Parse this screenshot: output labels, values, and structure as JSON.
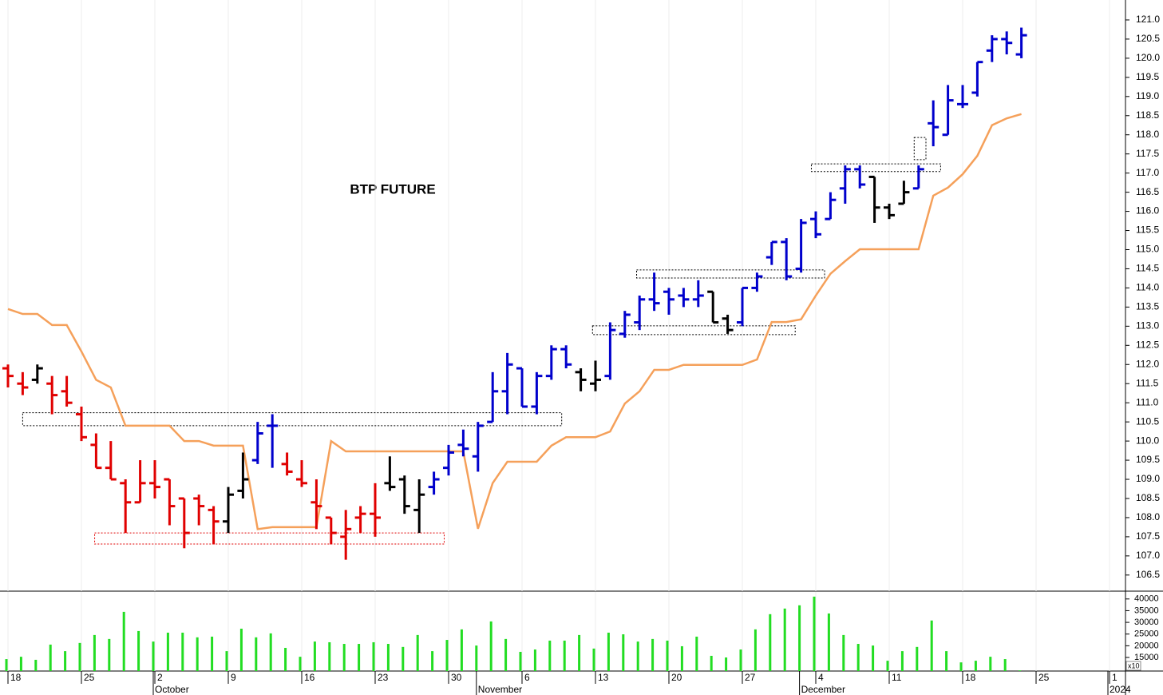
{
  "chart_data": [
    {
      "type": "ohlc",
      "title": "BTP FUTURE",
      "x": [
        "18",
        null,
        null,
        null,
        null,
        "25",
        null,
        null,
        null,
        null,
        "2",
        null,
        null,
        null,
        null,
        "9",
        null,
        null,
        null,
        null,
        "16",
        null,
        null,
        null,
        null,
        "23",
        null,
        null,
        null,
        null,
        "30",
        null,
        null,
        null,
        null,
        "6",
        null,
        null,
        null,
        null,
        "13",
        null,
        null,
        null,
        null,
        "20",
        null,
        null,
        null,
        null,
        "27",
        null,
        null,
        null,
        null,
        "4",
        null,
        null,
        null,
        null,
        "11",
        null,
        null,
        null,
        null,
        "18",
        null,
        null,
        null,
        null,
        "25",
        null,
        null,
        null,
        null,
        "1",
        null
      ],
      "month_labels": [
        null,
        null,
        null,
        null,
        null,
        null,
        null,
        null,
        null,
        null,
        "October",
        null,
        null,
        null,
        null,
        null,
        null,
        null,
        null,
        null,
        null,
        null,
        null,
        null,
        null,
        null,
        null,
        null,
        null,
        null,
        null,
        null,
        "November",
        null,
        null,
        null,
        null,
        null,
        null,
        null,
        null,
        null,
        null,
        null,
        null,
        null,
        null,
        null,
        null,
        null,
        null,
        null,
        null,
        null,
        "December",
        null,
        null,
        null,
        null,
        null,
        null,
        null,
        null,
        null,
        null,
        null,
        null,
        null,
        null,
        null,
        null,
        null,
        null,
        null,
        null,
        "2024",
        null
      ],
      "open": [
        111.9,
        111.5,
        111.6,
        111.5,
        111.3,
        110.7,
        109.9,
        109.3,
        108.9,
        108.4,
        108.9,
        109.0,
        108.5,
        108.5,
        108.2,
        107.9,
        108.7,
        109.5,
        110.4,
        109.4,
        109.0,
        108.4,
        108.0,
        107.5,
        108.0,
        108.1,
        108.9,
        109.0,
        108.2,
        108.8,
        109.3,
        109.9,
        109.6,
        110.5,
        111.3,
        111.9,
        110.9,
        111.7,
        112.4,
        111.8,
        111.5,
        111.7,
        112.8,
        113.1,
        113.7,
        113.9,
        113.8,
        113.7,
        113.9,
        113.2,
        113.1,
        114.0,
        114.8,
        115.2,
        114.5,
        115.8,
        115.8,
        116.6,
        117.1,
        116.9,
        116.1,
        116.2,
        116.6,
        118.3,
        118.0,
        118.8,
        119.1,
        120.2,
        120.5,
        120.1,
        null,
        null,
        null,
        null,
        null,
        null,
        null
      ],
      "high": [
        112.0,
        111.8,
        112.0,
        111.7,
        111.7,
        110.9,
        110.2,
        110.0,
        109.0,
        109.5,
        109.5,
        109.0,
        108.5,
        108.6,
        108.3,
        108.8,
        109.7,
        110.5,
        110.7,
        109.7,
        109.5,
        109.0,
        108.0,
        108.2,
        108.3,
        108.9,
        109.6,
        109.1,
        109.0,
        109.2,
        109.9,
        110.3,
        110.5,
        111.8,
        112.3,
        111.9,
        111.8,
        112.5,
        112.5,
        111.9,
        112.1,
        113.1,
        113.4,
        113.8,
        114.4,
        114.0,
        114.0,
        114.2,
        113.9,
        113.3,
        114.0,
        114.4,
        115.2,
        115.3,
        115.8,
        116.0,
        116.5,
        117.2,
        117.2,
        116.9,
        116.2,
        116.8,
        117.2,
        118.9,
        119.3,
        119.3,
        119.9,
        120.6,
        120.7,
        120.8,
        null,
        null,
        null,
        null,
        null,
        null,
        null
      ],
      "low": [
        111.4,
        111.2,
        111.5,
        110.7,
        110.9,
        110.0,
        109.3,
        109.0,
        107.6,
        108.4,
        108.5,
        107.8,
        107.2,
        107.8,
        107.3,
        107.6,
        108.5,
        109.4,
        109.3,
        109.1,
        108.8,
        107.7,
        107.3,
        106.9,
        107.6,
        107.5,
        108.7,
        108.1,
        107.6,
        108.6,
        109.1,
        109.6,
        109.2,
        110.5,
        110.7,
        110.9,
        110.7,
        111.6,
        111.9,
        111.3,
        111.3,
        111.6,
        112.7,
        112.9,
        113.4,
        113.3,
        113.5,
        113.5,
        113.1,
        112.8,
        113.0,
        113.9,
        114.6,
        114.2,
        114.4,
        115.3,
        115.8,
        116.2,
        116.6,
        115.7,
        115.8,
        116.2,
        116.6,
        117.7,
        118.0,
        118.7,
        119.0,
        119.9,
        120.1,
        120.0,
        null,
        null,
        null,
        null,
        null,
        null,
        null
      ],
      "close": [
        111.7,
        111.4,
        111.9,
        111.2,
        111.0,
        110.1,
        109.3,
        109.0,
        108.4,
        108.9,
        108.8,
        108.3,
        107.6,
        108.3,
        107.9,
        108.6,
        109.0,
        110.2,
        110.4,
        109.2,
        108.9,
        108.3,
        107.6,
        107.7,
        108.1,
        108.0,
        108.8,
        108.3,
        108.6,
        109.0,
        109.7,
        109.8,
        110.4,
        111.3,
        112.0,
        110.9,
        111.7,
        112.4,
        112.0,
        111.6,
        111.6,
        112.9,
        113.3,
        113.7,
        113.6,
        113.7,
        113.7,
        113.8,
        113.1,
        112.9,
        114.0,
        114.3,
        115.2,
        114.3,
        115.7,
        115.4,
        116.3,
        117.1,
        116.7,
        116.1,
        115.9,
        116.5,
        117.1,
        118.2,
        118.9,
        118.8,
        119.9,
        120.5,
        120.4,
        120.6,
        null,
        null,
        null,
        null,
        null,
        null,
        null
      ],
      "bar_colors": [
        "#e00000",
        "#e00000",
        "#000000",
        "#e00000",
        "#e00000",
        "#e00000",
        "#e00000",
        "#e00000",
        "#e00000",
        "#e00000",
        "#e00000",
        "#e00000",
        "#e00000",
        "#e00000",
        "#e00000",
        "#000000",
        "#000000",
        "#0000cc",
        "#0000cc",
        "#e00000",
        "#e00000",
        "#e00000",
        "#e00000",
        "#e00000",
        "#e00000",
        "#e00000",
        "#000000",
        "#000000",
        "#000000",
        "#0000cc",
        "#0000cc",
        "#0000cc",
        "#0000cc",
        "#0000cc",
        "#0000cc",
        "#0000cc",
        "#0000cc",
        "#0000cc",
        "#0000cc",
        "#000000",
        "#000000",
        "#0000cc",
        "#0000cc",
        "#0000cc",
        "#0000cc",
        "#0000cc",
        "#0000cc",
        "#0000cc",
        "#000000",
        "#000000",
        "#0000cc",
        "#0000cc",
        "#0000cc",
        "#0000cc",
        "#0000cc",
        "#0000cc",
        "#0000cc",
        "#0000cc",
        "#0000cc",
        "#000000",
        "#000000",
        "#000000",
        "#0000cc",
        "#0000cc",
        "#0000cc",
        "#0000cc",
        "#0000cc",
        "#0000cc",
        "#0000cc",
        "#0000cc",
        null,
        null,
        null,
        null,
        null,
        null,
        null
      ],
      "stop_line": {
        "color": "#f5a05a",
        "values": [
          113.45,
          113.32,
          113.32,
          113.03,
          113.03,
          112.34,
          111.6,
          111.4,
          110.4,
          110.4,
          110.4,
          110.4,
          110.0,
          110.0,
          109.88,
          109.88,
          109.88,
          107.7,
          107.75,
          107.75,
          107.75,
          107.75,
          110.0,
          109.73,
          109.73,
          109.73,
          109.73,
          109.73,
          109.73,
          109.73,
          109.73,
          109.73,
          107.71,
          108.9,
          109.46,
          109.46,
          109.46,
          109.88,
          110.1,
          110.1,
          110.1,
          110.25,
          110.98,
          111.3,
          111.86,
          111.86,
          111.99,
          111.99,
          111.99,
          111.99,
          111.99,
          112.13,
          113.11,
          113.11,
          113.18,
          113.8,
          114.37,
          114.7,
          115.01,
          115.01,
          115.01,
          115.01,
          115.01,
          116.41,
          116.62,
          116.97,
          117.45,
          118.25,
          118.43,
          118.54,
          null,
          null,
          null,
          null,
          null,
          null,
          null
        ]
      },
      "zones": [
        {
          "x0": 1,
          "x1": 37.7,
          "y0": 110.4,
          "y1": 110.74,
          "color": "#000000"
        },
        {
          "x0": 5.9,
          "x1": 29.7,
          "y0": 107.31,
          "y1": 107.6,
          "color": "#e00000"
        },
        {
          "x0": 39.8,
          "x1": 53.6,
          "y0": 112.78,
          "y1": 113.01,
          "color": "#000000"
        },
        {
          "x0": 42.8,
          "x1": 55.6,
          "y0": 114.26,
          "y1": 114.47,
          "color": "#000000"
        },
        {
          "x0": 54.7,
          "x1": 63.5,
          "y0": 117.04,
          "y1": 117.24,
          "color": "#000000"
        },
        {
          "x0": 61.7,
          "x1": 62.5,
          "y0": 117.35,
          "y1": 117.93,
          "color": "#000000"
        }
      ],
      "ylim": [
        106.1,
        121.5
      ],
      "yticks": [
        106.5,
        {
          "value": 107,
          "label": "107.0"
        },
        107.5,
        {
          "value": 108,
          "label": "108.0"
        },
        108.5,
        {
          "value": 109,
          "label": "109.0"
        },
        109.5,
        {
          "value": 110,
          "label": "110.0"
        },
        110.5,
        {
          "value": 111,
          "label": "111.0"
        },
        111.5,
        {
          "value": 112,
          "label": "112.0"
        },
        112.5,
        {
          "value": 113,
          "label": "113.0"
        },
        113.5,
        {
          "value": 114,
          "label": "114.0"
        },
        114.5,
        {
          "value": 115,
          "label": "115.0"
        },
        115.5,
        {
          "value": 116,
          "label": "116.0"
        },
        116.5,
        {
          "value": 117,
          "label": "117.0"
        },
        117.5,
        {
          "value": 118,
          "label": "118.0"
        },
        118.5,
        {
          "value": 119,
          "label": "119.0"
        },
        119.5,
        {
          "value": 120,
          "label": "120.0"
        },
        120.5,
        {
          "value": 121,
          "label": "121.0"
        }
      ],
      "grid": true
    },
    {
      "type": "bar",
      "color": "#22dd22",
      "scale_label": "x10",
      "values": [
        14300,
        15300,
        14000,
        20500,
        17700,
        21200,
        24600,
        22900,
        34500,
        26300,
        21800,
        25600,
        25600,
        23600,
        23900,
        17700,
        27300,
        23600,
        25300,
        19100,
        15300,
        21800,
        21500,
        20800,
        20800,
        21500,
        20800,
        19500,
        24600,
        17700,
        22500,
        27000,
        20100,
        30400,
        22900,
        17400,
        18400,
        22200,
        22200,
        24600,
        18800,
        25600,
        24900,
        21800,
        22900,
        22200,
        19800,
        23900,
        15700,
        15000,
        18400,
        27000,
        33500,
        35900,
        37300,
        41000,
        33800,
        24600,
        20800,
        20100,
        13600,
        17700,
        19500,
        30800,
        17700,
        12900,
        13600,
        15300,
        14300,
        9500,
        null,
        null,
        null,
        null,
        null,
        null,
        null
      ],
      "ylim": [
        9200,
        43000
      ],
      "yticks": [
        15000,
        20000,
        25000,
        30000,
        35000,
        40000
      ]
    }
  ]
}
